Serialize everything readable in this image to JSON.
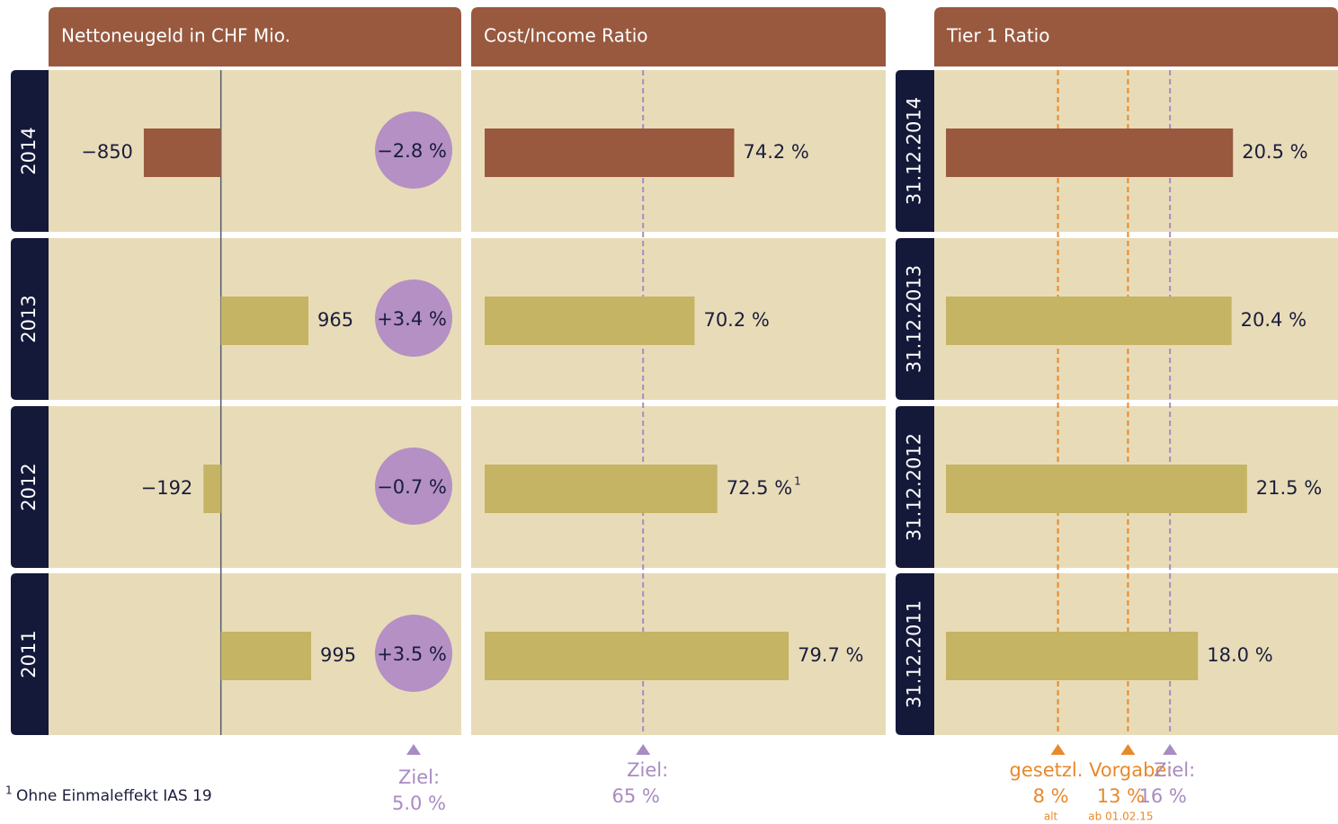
{
  "chart_data": [
    {
      "type": "bar",
      "title": "Nettoneugeld in CHF Mio.",
      "categories": [
        "2014",
        "2013",
        "2012",
        "2011"
      ],
      "values": [
        -850,
        965,
        -192,
        995
      ],
      "value_labels": [
        "−850",
        "965",
        "−192",
        "995"
      ],
      "colors": [
        "#98593f",
        "#c4b464",
        "#c4b464",
        "#c4b464"
      ],
      "xlim": [
        -1900,
        2650
      ],
      "growth": [
        -2.8,
        3.4,
        -0.7,
        3.5
      ],
      "growth_labels": [
        "−2.8 %",
        "+3.4 %",
        "−0.7 %",
        "+3.5 %"
      ],
      "growth_color": "#b490c4",
      "growth_target": {
        "label": "Ziel:",
        "value": 5.0,
        "value_label": "5.0 %",
        "color": "#a98bc2"
      }
    },
    {
      "type": "bar",
      "title": "Cost/Income Ratio",
      "values": [
        74.2,
        70.2,
        72.5,
        79.7
      ],
      "value_labels": [
        "74.2 %",
        "70.2 %",
        "72.5 %",
        "79.7 %"
      ],
      "value_footnotes": [
        null,
        null,
        "1",
        null
      ],
      "colors": [
        "#98593f",
        "#c4b464",
        "#c4b464",
        "#c4b464"
      ],
      "xlim": [
        49,
        89.5
      ],
      "target_groups": [
        {
          "label": "Ziel:",
          "color": "#a98bc2",
          "targets": [
            {
              "value": 65,
              "label": "65 %"
            }
          ]
        }
      ]
    },
    {
      "type": "bar",
      "title": "Tier 1 Ratio",
      "categories": [
        "31.12.2014",
        "31.12.2013",
        "31.12.2012",
        "31.12.2011"
      ],
      "values": [
        20.5,
        20.4,
        21.5,
        18.0
      ],
      "value_labels": [
        "20.5 %",
        "20.4 %",
        "21.5 %",
        "18.0 %"
      ],
      "colors": [
        "#98593f",
        "#c4b464",
        "#c4b464",
        "#c4b464"
      ],
      "xlim": [
        0,
        28
      ],
      "target_groups": [
        {
          "label": "gesetzl. Vorgabe:",
          "color": "#e8892a",
          "targets": [
            {
              "value": 8,
              "label": "8 %",
              "note": "alt"
            },
            {
              "value": 13,
              "label": "13 %",
              "note": "ab 01.02.15"
            }
          ]
        },
        {
          "label": "Ziel:",
          "color": "#a98bc2",
          "targets": [
            {
              "value": 16,
              "label": "16 %"
            }
          ]
        }
      ]
    }
  ],
  "footnote": {
    "marker": "1",
    "text": "Ohne Einmaleffekt IAS 19"
  }
}
